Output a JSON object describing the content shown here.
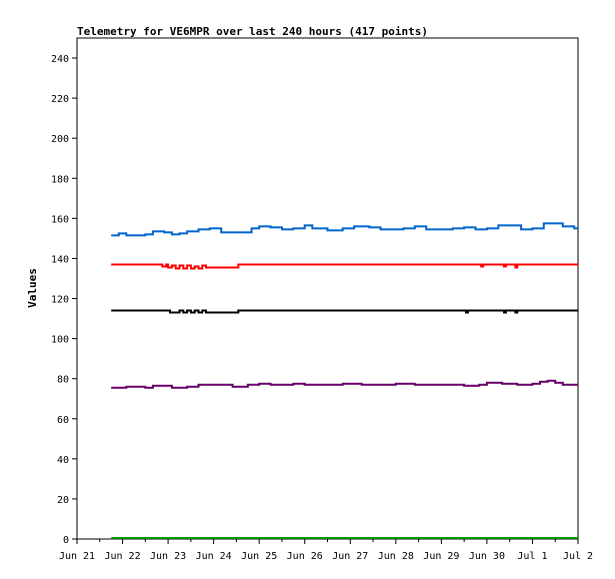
{
  "chart_data": {
    "type": "line",
    "title": "Telemetry for VE6MPR over last 240 hours (417 points)",
    "ylabel": "Values",
    "xlabel": "",
    "ylim": [
      0,
      250
    ],
    "xlim": [
      "2021-06-21",
      "2021-07-02"
    ],
    "yticks": [
      0,
      20,
      40,
      60,
      80,
      100,
      120,
      140,
      160,
      180,
      200,
      220,
      240
    ],
    "xtick_dates": [
      "2021-06-21",
      "2021-06-22",
      "2021-06-23",
      "2021-06-24",
      "2021-06-25",
      "2021-06-26",
      "2021-06-27",
      "2021-06-28",
      "2021-06-29",
      "2021-06-30",
      "2021-07-01",
      "2021-07-02"
    ],
    "xtick_labels": [
      "Jun 21",
      "Jun 22",
      "Jun 23",
      "Jun 24",
      "Jun 25",
      "Jun 26",
      "Jun 27",
      "Jun 28",
      "Jun 29",
      "Jun 30",
      "Jul 1",
      "Jul 2"
    ],
    "grid": false,
    "legend": "none",
    "series": [
      {
        "color": "#0066cc",
        "points": [
          [
            "2021-06-21 18:00",
            151.5
          ],
          [
            "2021-06-21 22:00",
            152.5
          ],
          [
            "2021-06-22 02:00",
            151.5
          ],
          [
            "2021-06-22 12:00",
            152.0
          ],
          [
            "2021-06-22 16:00",
            153.5
          ],
          [
            "2021-06-22 22:00",
            153.0
          ],
          [
            "2021-06-23 02:00",
            152.0
          ],
          [
            "2021-06-23 06:00",
            152.5
          ],
          [
            "2021-06-23 10:00",
            153.5
          ],
          [
            "2021-06-23 16:00",
            154.5
          ],
          [
            "2021-06-23 22:00",
            155.0
          ],
          [
            "2021-06-24 04:00",
            153.0
          ],
          [
            "2021-06-24 14:00",
            153.0
          ],
          [
            "2021-06-24 20:00",
            155.0
          ],
          [
            "2021-06-25 00:00",
            156.0
          ],
          [
            "2021-06-25 06:00",
            155.5
          ],
          [
            "2021-06-25 12:00",
            154.5
          ],
          [
            "2021-06-25 18:00",
            155.0
          ],
          [
            "2021-06-26 00:00",
            156.5
          ],
          [
            "2021-06-26 04:00",
            155.0
          ],
          [
            "2021-06-26 12:00",
            154.0
          ],
          [
            "2021-06-26 20:00",
            155.0
          ],
          [
            "2021-06-27 02:00",
            156.0
          ],
          [
            "2021-06-27 10:00",
            155.5
          ],
          [
            "2021-06-27 16:00",
            154.5
          ],
          [
            "2021-06-27 22:00",
            154.5
          ],
          [
            "2021-06-28 04:00",
            155.0
          ],
          [
            "2021-06-28 10:00",
            156.0
          ],
          [
            "2021-06-28 16:00",
            154.5
          ],
          [
            "2021-06-28 22:00",
            154.5
          ],
          [
            "2021-06-29 06:00",
            155.0
          ],
          [
            "2021-06-29 12:00",
            155.5
          ],
          [
            "2021-06-29 18:00",
            154.5
          ],
          [
            "2021-06-30 00:00",
            155.0
          ],
          [
            "2021-06-30 06:00",
            156.5
          ],
          [
            "2021-06-30 12:00",
            156.5
          ],
          [
            "2021-06-30 18:00",
            154.5
          ],
          [
            "2021-07-01 00:00",
            155.0
          ],
          [
            "2021-07-01 06:00",
            157.5
          ],
          [
            "2021-07-01 12:00",
            157.5
          ],
          [
            "2021-07-01 16:00",
            156.0
          ],
          [
            "2021-07-01 22:00",
            155.0
          ],
          [
            "2021-07-02 00:00",
            155.0
          ]
        ]
      },
      {
        "color": "#ff0000",
        "points": [
          [
            "2021-06-21 18:00",
            137.0
          ],
          [
            "2021-06-22 20:00",
            137.0
          ],
          [
            "2021-06-22 21:00",
            136.0
          ],
          [
            "2021-06-22 23:00",
            137.0
          ],
          [
            "2021-06-23 00:00",
            135.5
          ],
          [
            "2021-06-23 02:00",
            136.5
          ],
          [
            "2021-06-23 04:00",
            135.0
          ],
          [
            "2021-06-23 06:00",
            136.5
          ],
          [
            "2021-06-23 08:00",
            135.0
          ],
          [
            "2021-06-23 10:00",
            136.5
          ],
          [
            "2021-06-23 12:00",
            135.0
          ],
          [
            "2021-06-23 14:00",
            136.0
          ],
          [
            "2021-06-23 16:00",
            135.0
          ],
          [
            "2021-06-23 18:00",
            136.5
          ],
          [
            "2021-06-23 20:00",
            135.5
          ],
          [
            "2021-06-24 00:00",
            135.5
          ],
          [
            "2021-06-24 12:00",
            135.5
          ],
          [
            "2021-06-24 13:00",
            137.0
          ],
          [
            "2021-06-29 20:00",
            137.0
          ],
          [
            "2021-06-29 21:00",
            136.0
          ],
          [
            "2021-06-29 22:00",
            137.0
          ],
          [
            "2021-06-30 08:00",
            137.0
          ],
          [
            "2021-06-30 09:00",
            136.0
          ],
          [
            "2021-06-30 10:00",
            137.0
          ],
          [
            "2021-06-30 14:00",
            137.0
          ],
          [
            "2021-06-30 15:00",
            135.5
          ],
          [
            "2021-06-30 16:00",
            137.0
          ],
          [
            "2021-07-02 00:00",
            137.0
          ]
        ]
      },
      {
        "color": "#000000",
        "points": [
          [
            "2021-06-21 18:00",
            114.0
          ],
          [
            "2021-06-23 00:00",
            114.0
          ],
          [
            "2021-06-23 01:00",
            113.0
          ],
          [
            "2021-06-23 04:00",
            113.0
          ],
          [
            "2021-06-23 06:00",
            114.0
          ],
          [
            "2021-06-23 08:00",
            113.0
          ],
          [
            "2021-06-23 10:00",
            114.0
          ],
          [
            "2021-06-23 12:00",
            113.0
          ],
          [
            "2021-06-23 14:00",
            114.0
          ],
          [
            "2021-06-23 16:00",
            113.0
          ],
          [
            "2021-06-23 18:00",
            114.0
          ],
          [
            "2021-06-23 20:00",
            113.0
          ],
          [
            "2021-06-24 12:00",
            113.0
          ],
          [
            "2021-06-24 13:00",
            114.0
          ],
          [
            "2021-06-29 12:00",
            114.0
          ],
          [
            "2021-06-29 13:00",
            113.0
          ],
          [
            "2021-06-29 14:00",
            114.0
          ],
          [
            "2021-06-30 08:00",
            114.0
          ],
          [
            "2021-06-30 09:00",
            113.0
          ],
          [
            "2021-06-30 10:00",
            114.0
          ],
          [
            "2021-06-30 14:00",
            114.0
          ],
          [
            "2021-06-30 15:00",
            113.0
          ],
          [
            "2021-06-30 16:00",
            114.0
          ],
          [
            "2021-07-02 00:00",
            114.0
          ]
        ]
      },
      {
        "color": "#660066",
        "points": [
          [
            "2021-06-21 18:00",
            75.5
          ],
          [
            "2021-06-22 00:00",
            75.5
          ],
          [
            "2021-06-22 02:00",
            76.0
          ],
          [
            "2021-06-22 12:00",
            75.5
          ],
          [
            "2021-06-22 16:00",
            76.5
          ],
          [
            "2021-06-22 22:00",
            76.5
          ],
          [
            "2021-06-23 02:00",
            75.5
          ],
          [
            "2021-06-23 10:00",
            76.0
          ],
          [
            "2021-06-23 16:00",
            77.0
          ],
          [
            "2021-06-24 04:00",
            77.0
          ],
          [
            "2021-06-24 10:00",
            76.0
          ],
          [
            "2021-06-24 14:00",
            76.0
          ],
          [
            "2021-06-24 18:00",
            77.0
          ],
          [
            "2021-06-25 00:00",
            77.5
          ],
          [
            "2021-06-25 06:00",
            77.0
          ],
          [
            "2021-06-25 18:00",
            77.5
          ],
          [
            "2021-06-26 00:00",
            77.0
          ],
          [
            "2021-06-26 12:00",
            77.0
          ],
          [
            "2021-06-26 20:00",
            77.5
          ],
          [
            "2021-06-27 06:00",
            77.0
          ],
          [
            "2021-06-27 16:00",
            77.0
          ],
          [
            "2021-06-28 00:00",
            77.5
          ],
          [
            "2021-06-28 10:00",
            77.0
          ],
          [
            "2021-06-28 20:00",
            77.0
          ],
          [
            "2021-06-29 12:00",
            76.5
          ],
          [
            "2021-06-29 20:00",
            77.0
          ],
          [
            "2021-06-30 00:00",
            78.0
          ],
          [
            "2021-06-30 08:00",
            77.5
          ],
          [
            "2021-06-30 16:00",
            77.0
          ],
          [
            "2021-07-01 00:00",
            77.5
          ],
          [
            "2021-07-01 04:00",
            78.5
          ],
          [
            "2021-07-01 08:00",
            79.0
          ],
          [
            "2021-07-01 12:00",
            78.0
          ],
          [
            "2021-07-01 16:00",
            77.0
          ],
          [
            "2021-07-02 00:00",
            77.0
          ]
        ]
      },
      {
        "color": "#009900",
        "points": [
          [
            "2021-06-21 18:00",
            0.5
          ],
          [
            "2021-07-02 00:00",
            0.5
          ]
        ]
      }
    ]
  }
}
